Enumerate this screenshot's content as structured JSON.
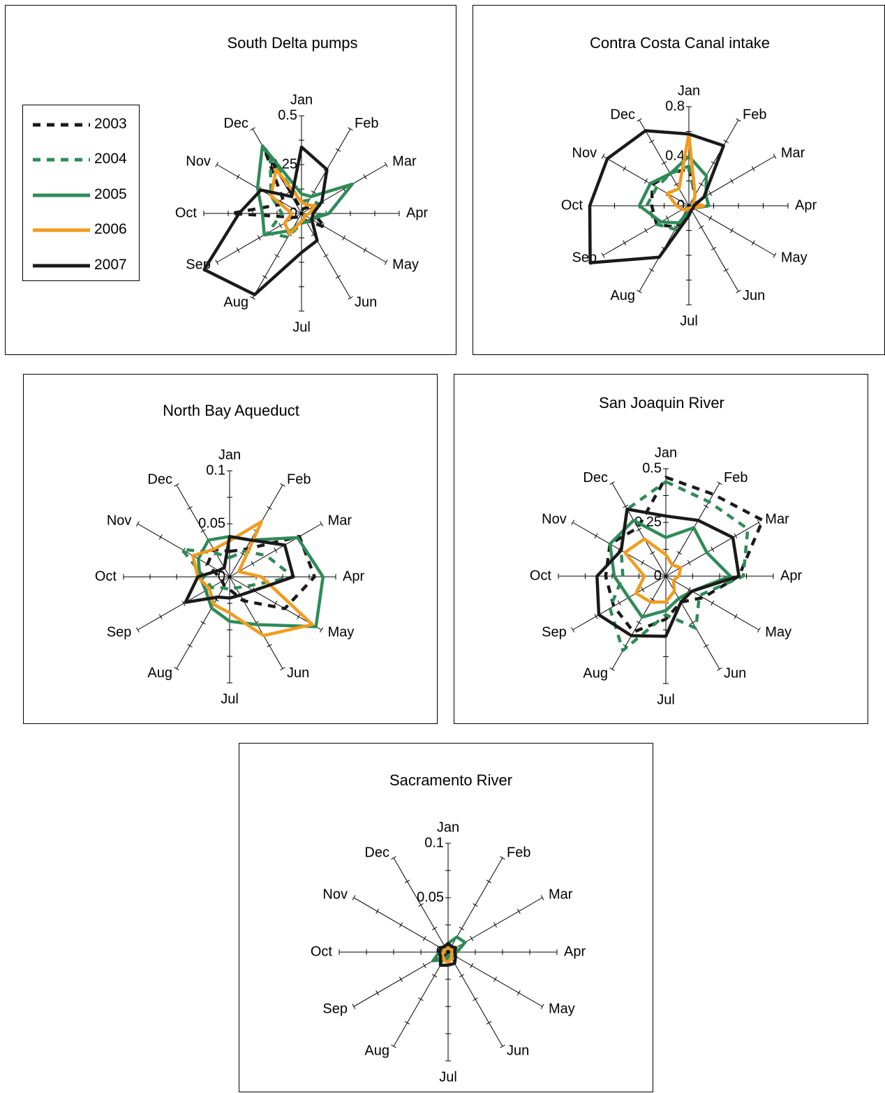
{
  "months": [
    "Jan",
    "Feb",
    "Mar",
    "Apr",
    "May",
    "Jun",
    "Jul",
    "Aug",
    "Sep",
    "Oct",
    "Nov",
    "Dec"
  ],
  "legend": [
    {
      "name": "2003",
      "color": "#1a1a1a",
      "dash": true
    },
    {
      "name": "2004",
      "color": "#2e8b57",
      "dash": true
    },
    {
      "name": "2005",
      "color": "#2e8b57",
      "dash": false
    },
    {
      "name": "2006",
      "color": "#f29b1d",
      "dash": false
    },
    {
      "name": "2007",
      "color": "#1a1a1a",
      "dash": false
    }
  ],
  "chart_data": [
    {
      "type": "radar",
      "title": "South Delta pumps",
      "categories": [
        "Jan",
        "Feb",
        "Mar",
        "Apr",
        "May",
        "Jun",
        "Jul",
        "Aug",
        "Sep",
        "Oct",
        "Nov",
        "Dec"
      ],
      "rmax": 0.5,
      "tick_labels": [
        "0",
        "0.25",
        "0.5"
      ],
      "series": [
        {
          "name": "2003",
          "values": [
            0.02,
            0.03,
            0.08,
            0.06,
            0.14,
            0.04,
            0.02,
            0.02,
            0.04,
            0.36,
            0.1,
            0.38
          ]
        },
        {
          "name": "2004",
          "values": [
            0.06,
            0.08,
            0.1,
            0.1,
            0.06,
            0.05,
            0.05,
            0.14,
            0.2,
            0.1,
            0.18,
            0.32
          ]
        },
        {
          "name": "2005",
          "values": [
            0.1,
            0.1,
            0.3,
            0.14,
            0.06,
            0.05,
            0.04,
            0.1,
            0.22,
            0.2,
            0.26,
            0.4
          ]
        },
        {
          "name": "2006",
          "values": [
            0.06,
            0.05,
            0.08,
            0.04,
            0.02,
            0.03,
            0.04,
            0.12,
            0.1,
            0.05,
            0.18,
            0.26
          ]
        },
        {
          "name": "2007",
          "values": [
            0.34,
            0.26,
            0.12,
            0.06,
            0.06,
            0.16,
            0.2,
            0.48,
            0.58,
            0.32,
            0.24,
            0.1
          ]
        }
      ]
    },
    {
      "type": "radar",
      "title": "Contra Costa Canal intake",
      "categories": [
        "Jan",
        "Feb",
        "Mar",
        "Apr",
        "May",
        "Jun",
        "Jul",
        "Aug",
        "Sep",
        "Oct",
        "Nov",
        "Dec"
      ],
      "rmax": 0.8,
      "tick_labels": [
        "0",
        "0.4",
        "0.8"
      ],
      "series": [
        {
          "name": "2003",
          "values": [
            0.3,
            0.1,
            0.04,
            0.02,
            0.02,
            0.02,
            0.04,
            0.2,
            0.3,
            0.3,
            0.34,
            0.3
          ]
        },
        {
          "name": "2004",
          "values": [
            0.32,
            0.1,
            0.04,
            0.04,
            0.04,
            0.03,
            0.04,
            0.22,
            0.3,
            0.34,
            0.3,
            0.3
          ]
        },
        {
          "name": "2005",
          "values": [
            0.4,
            0.28,
            0.16,
            0.16,
            0.04,
            0.03,
            0.04,
            0.16,
            0.26,
            0.4,
            0.36,
            0.3
          ]
        },
        {
          "name": "2006",
          "values": [
            0.58,
            0.1,
            0.04,
            0.12,
            0.04,
            0.02,
            0.02,
            0.04,
            0.06,
            0.1,
            0.2,
            0.16
          ]
        },
        {
          "name": "2007",
          "values": [
            0.58,
            0.56,
            0.14,
            0.04,
            0.04,
            0.04,
            0.08,
            0.48,
            0.92,
            0.8,
            0.76,
            0.7
          ]
        }
      ]
    },
    {
      "type": "radar",
      "title": "North Bay Aqueduct",
      "categories": [
        "Jan",
        "Feb",
        "Mar",
        "Apr",
        "May",
        "Jun",
        "Jul",
        "Aug",
        "Sep",
        "Oct",
        "Nov",
        "Dec"
      ],
      "rmax": 0.1,
      "tick_labels": [
        "0",
        "0.05",
        "0.1"
      ],
      "series": [
        {
          "name": "2003",
          "values": [
            0.024,
            0.03,
            0.076,
            0.08,
            0.06,
            0.026,
            0.012,
            0.01,
            0.008,
            0.01,
            0.024,
            0.03
          ]
        },
        {
          "name": "2004",
          "values": [
            0.018,
            0.028,
            0.04,
            0.06,
            0.018,
            0.012,
            0.012,
            0.012,
            0.02,
            0.024,
            0.052,
            0.026
          ]
        },
        {
          "name": "2005",
          "values": [
            0.038,
            0.04,
            0.074,
            0.088,
            0.094,
            0.052,
            0.042,
            0.034,
            0.026,
            0.028,
            0.034,
            0.04
          ]
        },
        {
          "name": "2006",
          "values": [
            0.034,
            0.06,
            0.01,
            0.03,
            0.09,
            0.064,
            0.034,
            0.03,
            0.022,
            0.03,
            0.04,
            0.03
          ]
        },
        {
          "name": "2007",
          "values": [
            0.038,
            0.04,
            0.06,
            0.06,
            0.026,
            0.02,
            0.02,
            0.022,
            0.048,
            0.03,
            0.012,
            0.01
          ]
        }
      ]
    },
    {
      "type": "radar",
      "title": "San Joaquin River",
      "categories": [
        "Jan",
        "Feb",
        "Mar",
        "Apr",
        "May",
        "Jun",
        "Jul",
        "Aug",
        "Sep",
        "Oct",
        "Nov",
        "Dec"
      ],
      "rmax": 0.5,
      "tick_labels": [
        "0",
        "0.25",
        "0.5"
      ],
      "series": [
        {
          "name": "2003",
          "values": [
            0.46,
            0.44,
            0.52,
            0.34,
            0.2,
            0.14,
            0.2,
            0.3,
            0.28,
            0.28,
            0.3,
            0.26
          ]
        },
        {
          "name": "2004",
          "values": [
            0.44,
            0.4,
            0.44,
            0.36,
            0.18,
            0.28,
            0.18,
            0.4,
            0.3,
            0.2,
            0.24,
            0.36
          ]
        },
        {
          "name": "2005",
          "values": [
            0.18,
            0.26,
            0.22,
            0.3,
            0.14,
            0.12,
            0.16,
            0.22,
            0.2,
            0.24,
            0.3,
            0.3
          ]
        },
        {
          "name": "2006",
          "values": [
            0.1,
            0.06,
            0.08,
            0.06,
            0.04,
            0.08,
            0.12,
            0.14,
            0.16,
            0.1,
            0.22,
            0.2
          ]
        },
        {
          "name": "2007",
          "values": [
            0.28,
            0.3,
            0.36,
            0.34,
            0.14,
            0.14,
            0.28,
            0.32,
            0.36,
            0.32,
            0.24,
            0.36
          ]
        }
      ]
    },
    {
      "type": "radar",
      "title": "Sacramento River",
      "categories": [
        "Jan",
        "Feb",
        "Mar",
        "Apr",
        "May",
        "Jun",
        "Jul",
        "Aug",
        "Sep",
        "Oct",
        "Nov",
        "Dec"
      ],
      "rmax": 0.1,
      "tick_labels": [
        "0",
        "0.05",
        "0.1"
      ],
      "series": [
        {
          "name": "2003",
          "values": [
            0.006,
            0.005,
            0.004,
            0.004,
            0.004,
            0.004,
            0.004,
            0.004,
            0.004,
            0.01,
            0.006,
            0.005
          ]
        },
        {
          "name": "2004",
          "values": [
            0.004,
            0.005,
            0.006,
            0.004,
            0.004,
            0.004,
            0.004,
            0.006,
            0.008,
            0.006,
            0.004,
            0.004
          ]
        },
        {
          "name": "2005",
          "values": [
            0.008,
            0.016,
            0.018,
            0.008,
            0.006,
            0.006,
            0.006,
            0.008,
            0.016,
            0.008,
            0.006,
            0.006
          ]
        },
        {
          "name": "2006",
          "values": [
            0.004,
            0.004,
            0.004,
            0.004,
            0.004,
            0.006,
            0.01,
            0.008,
            0.006,
            0.004,
            0.004,
            0.004
          ]
        },
        {
          "name": "2007",
          "values": [
            0.008,
            0.006,
            0.008,
            0.006,
            0.008,
            0.012,
            0.012,
            0.014,
            0.008,
            0.008,
            0.008,
            0.006
          ]
        }
      ]
    }
  ]
}
